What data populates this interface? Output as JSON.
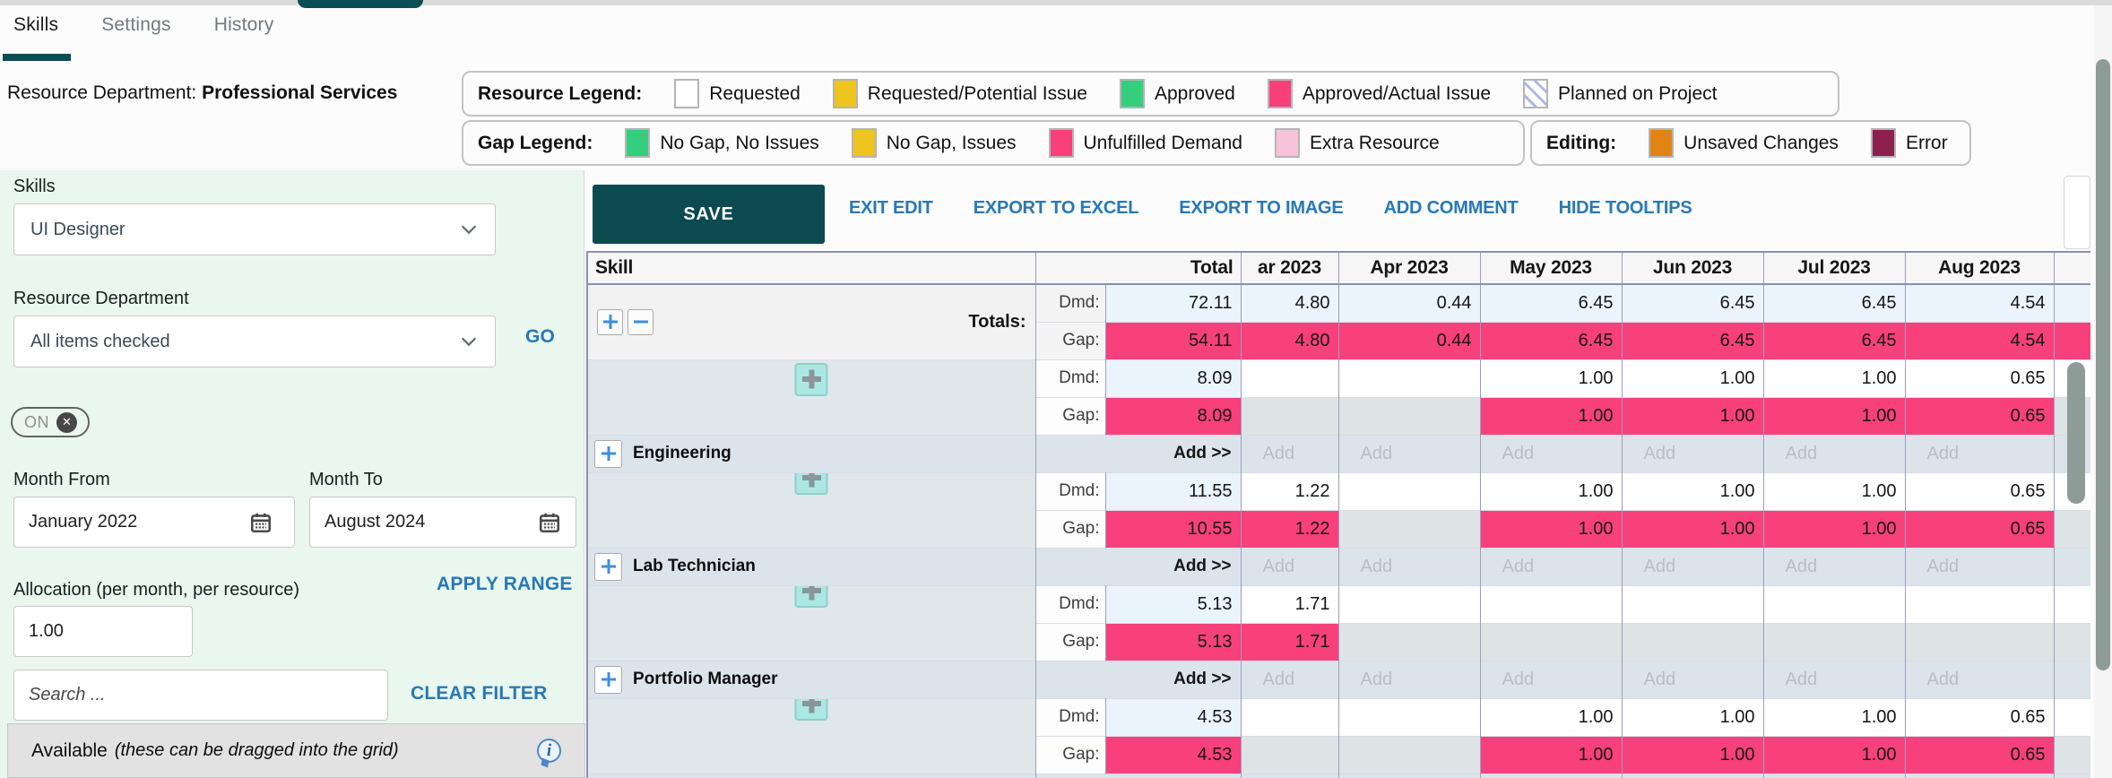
{
  "tabs": [
    {
      "label": "Skills",
      "active": true
    },
    {
      "label": "Settings",
      "active": false
    },
    {
      "label": "History",
      "active": false
    }
  ],
  "header": {
    "dept_label": "Resource Department:",
    "dept_value": "Professional Services"
  },
  "legends": {
    "resource": {
      "title": "Resource Legend:",
      "items": [
        {
          "label": "Requested",
          "color": "#FFFFFF"
        },
        {
          "label": "Requested/Potential Issue",
          "color": "#EEC41E"
        },
        {
          "label": "Approved",
          "color": "#33CF7D"
        },
        {
          "label": "Approved/Actual Issue",
          "color": "#F8407C"
        },
        {
          "label": "Planned on Project",
          "color": "#FFFFFF",
          "hatched": true
        }
      ]
    },
    "gap": {
      "title": "Gap Legend:",
      "items": [
        {
          "label": "No Gap, No Issues",
          "color": "#33CF7D"
        },
        {
          "label": "No Gap, Issues",
          "color": "#EEC41E"
        },
        {
          "label": "Unfulfilled Demand",
          "color": "#F8407C"
        },
        {
          "label": "Extra Resource",
          "color": "#F6C3DA"
        }
      ]
    },
    "editing": {
      "title": "Editing:",
      "items": [
        {
          "label": "Unsaved Changes",
          "color": "#E08514"
        },
        {
          "label": "Error",
          "color": "#8C2150"
        }
      ]
    }
  },
  "sidebar": {
    "skills_label": "Skills",
    "skills_value": "UI Designer",
    "department_label": "Resource Department",
    "department_value": "All items checked",
    "go_label": "GO",
    "toggle_label": "ON",
    "month_from_label": "Month From",
    "month_from_value": "January 2022",
    "month_to_label": "Month To",
    "month_to_value": "August 2024",
    "apply_range_label": "APPLY RANGE",
    "allocation_label": "Allocation (per month, per resource)",
    "allocation_value": "1.00",
    "search_placeholder": "Search ...",
    "clear_filter_label": "CLEAR FILTER",
    "available_label": "Available",
    "available_note": "(these can be dragged into the grid)"
  },
  "toolbar": {
    "save_label": "SAVE",
    "links": [
      "EXIT EDIT",
      "EXPORT TO EXCEL",
      "EXPORT TO IMAGE",
      "ADD COMMENT",
      "HIDE TOOLTIPS"
    ]
  },
  "grid": {
    "columns": {
      "skill": "Skill",
      "total": "Total",
      "months": [
        "ar 2023",
        "Apr 2023",
        "May 2023",
        "Jun 2023",
        "Jul 2023",
        "Aug 2023"
      ]
    },
    "row_labels": {
      "demand": "Dmd:",
      "gap": "Gap:"
    },
    "totals": {
      "label": "Totals:",
      "demand": [
        "72.11",
        "4.80",
        "0.44",
        "6.45",
        "6.45",
        "6.45",
        "4.54"
      ],
      "gap": [
        "54.11",
        "4.80",
        "0.44",
        "6.45",
        "6.45",
        "6.45",
        "4.54"
      ]
    },
    "add_total_label": "Add >>",
    "add_cell_label": "Add",
    "groups": [
      {
        "name": "",
        "show_name_row": false,
        "demand": [
          "8.09",
          "",
          "",
          "1.00",
          "1.00",
          "1.00",
          "0.65"
        ],
        "gap": [
          "8.09",
          "",
          "",
          "1.00",
          "1.00",
          "1.00",
          "0.65"
        ]
      },
      {
        "name": "Engineering",
        "show_name_row": true,
        "demand": [
          "11.55",
          "1.22",
          "",
          "1.00",
          "1.00",
          "1.00",
          "0.65"
        ],
        "gap": [
          "10.55",
          "1.22",
          "",
          "1.00",
          "1.00",
          "1.00",
          "0.65"
        ]
      },
      {
        "name": "Lab Technician",
        "show_name_row": true,
        "demand": [
          "5.13",
          "1.71",
          "",
          "",
          "",
          "",
          ""
        ],
        "gap": [
          "5.13",
          "1.71",
          "",
          "",
          "",
          "",
          ""
        ]
      },
      {
        "name": "Portfolio Manager",
        "show_name_row": true,
        "demand": [
          "4.53",
          "",
          "",
          "1.00",
          "1.00",
          "1.00",
          "0.65"
        ],
        "gap": [
          "4.53",
          "",
          "",
          "1.00",
          "1.00",
          "1.00",
          "0.65"
        ]
      }
    ],
    "trailing_partial_row": true
  },
  "colors": {
    "accent_teal": "#0B4A50",
    "link_blue": "#2878B8",
    "gap_pink": "#F8407C",
    "demand_blue": "#EAF4FC",
    "empty_gap_gray": "#DEE4E6",
    "group_row_bg": "#DCE4EB",
    "sidebar_bg": "#E9F7EF",
    "border_purple": "#8B8FB0"
  }
}
